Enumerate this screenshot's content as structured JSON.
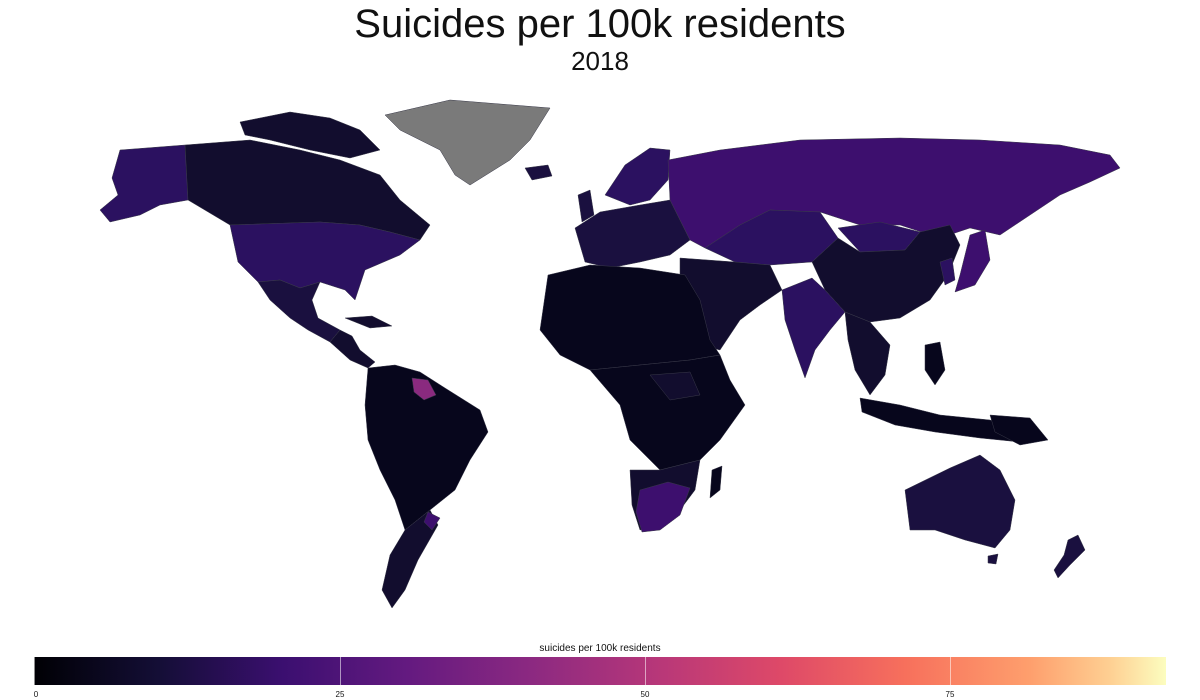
{
  "title": "Suicides per 100k residents",
  "subtitle": "2018",
  "legend": {
    "title": "suicides per 100k residents",
    "ticks": [
      "0",
      "25",
      "50",
      "75"
    ],
    "min": 0,
    "max": 95,
    "palette": "magma"
  },
  "colors": {
    "no_data": "#7a7a7a",
    "very_low": "#07061c",
    "low": "#120d2e",
    "low_mid": "#1a103f",
    "mid": "#2b1160",
    "mid_high": "#3d0f6e",
    "high": "#8a2a7f"
  }
}
